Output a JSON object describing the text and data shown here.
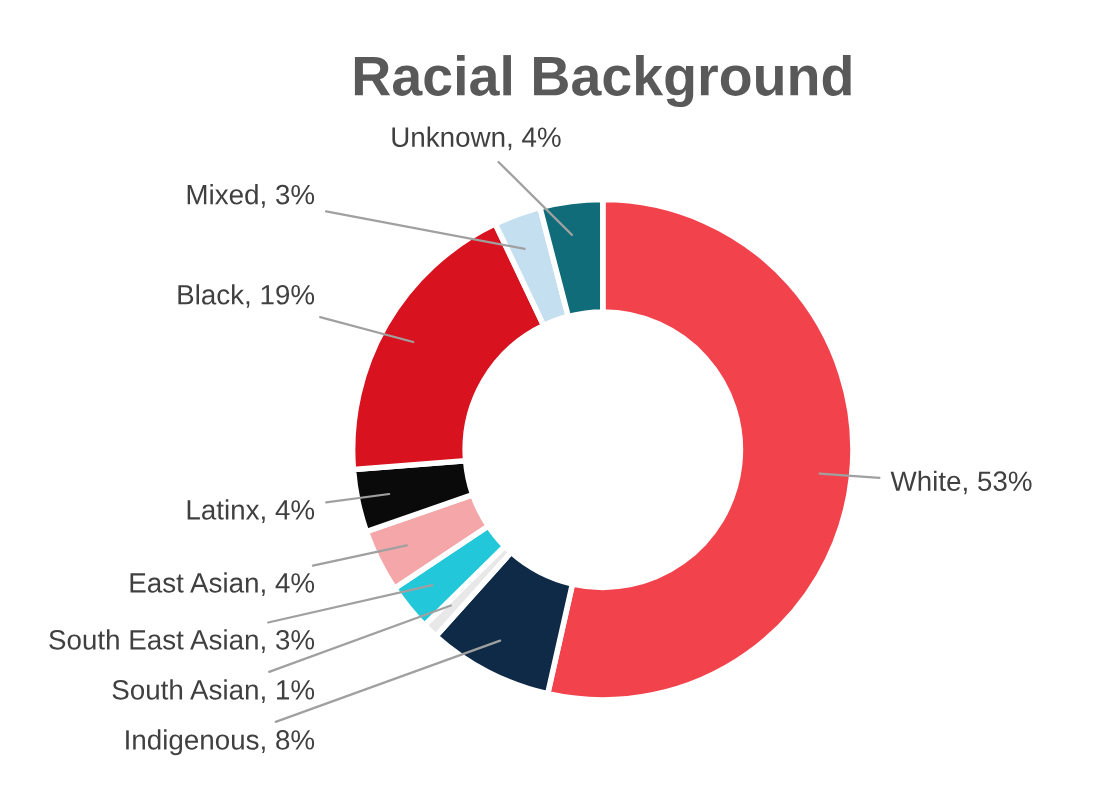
{
  "chart_data": {
    "type": "donut",
    "title": "Racial Background",
    "categories": [
      "White",
      "Indigenous",
      "South Asian",
      "South East Asian",
      "East Asian",
      "Latinx",
      "Black",
      "Mixed",
      "Unknown"
    ],
    "values": [
      53,
      8,
      1,
      3,
      4,
      4,
      19,
      3,
      4
    ],
    "colors": [
      "#f2434d",
      "#0e2a47",
      "#e8e8e8",
      "#22c7da",
      "#f4a6a8",
      "#0a0a0a",
      "#d8121e",
      "#c3dff0",
      "#0f6c78"
    ],
    "value_labels": [
      "53%",
      "8%",
      "1%",
      "3%",
      "4%",
      "4%",
      "19%",
      "3%",
      "4%"
    ],
    "legend": false
  }
}
